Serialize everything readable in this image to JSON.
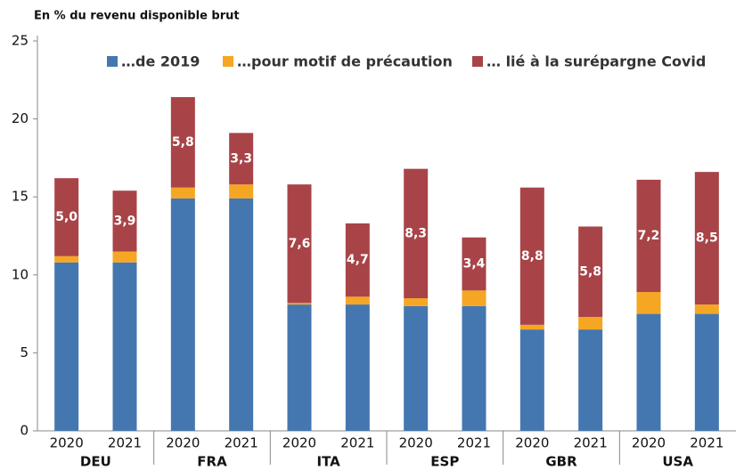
{
  "chart_data": {
    "type": "stacked_bar",
    "title": "En % du revenu disponible brut",
    "categories": [
      "2020",
      "2021",
      "2020",
      "2021",
      "2020",
      "2021",
      "2020",
      "2021",
      "2020",
      "2021",
      "2020",
      "2021"
    ],
    "groups": [
      "DEU",
      "FRA",
      "ITA",
      "ESP",
      "GBR",
      "USA"
    ],
    "series": [
      {
        "name": "…de 2019",
        "color": "#4477b0",
        "values": [
          10.8,
          10.8,
          14.9,
          14.9,
          8.1,
          8.1,
          8.0,
          8.0,
          6.5,
          6.5,
          7.5,
          7.5
        ]
      },
      {
        "name": "…pour motif de précaution",
        "color": "#f5a623",
        "values": [
          0.4,
          0.7,
          0.7,
          0.9,
          0.1,
          0.5,
          0.5,
          1.0,
          0.3,
          0.8,
          1.4,
          0.6
        ]
      },
      {
        "name": "… lié à la surépargne Covid",
        "color": "#a84448",
        "values": [
          5.0,
          3.9,
          5.8,
          3.3,
          7.6,
          4.7,
          8.3,
          3.4,
          8.8,
          5.8,
          7.2,
          8.5
        ],
        "value_labels": [
          "5,0",
          "3,9",
          "5,8",
          "3,3",
          "7,6",
          "4,7",
          "8,3",
          "3,4",
          "8,8",
          "5,8",
          "7,2",
          "8,5"
        ]
      }
    ],
    "ylim": [
      0,
      25
    ],
    "yticks": [
      0,
      5,
      10,
      15,
      20,
      25
    ],
    "grid": false
  }
}
